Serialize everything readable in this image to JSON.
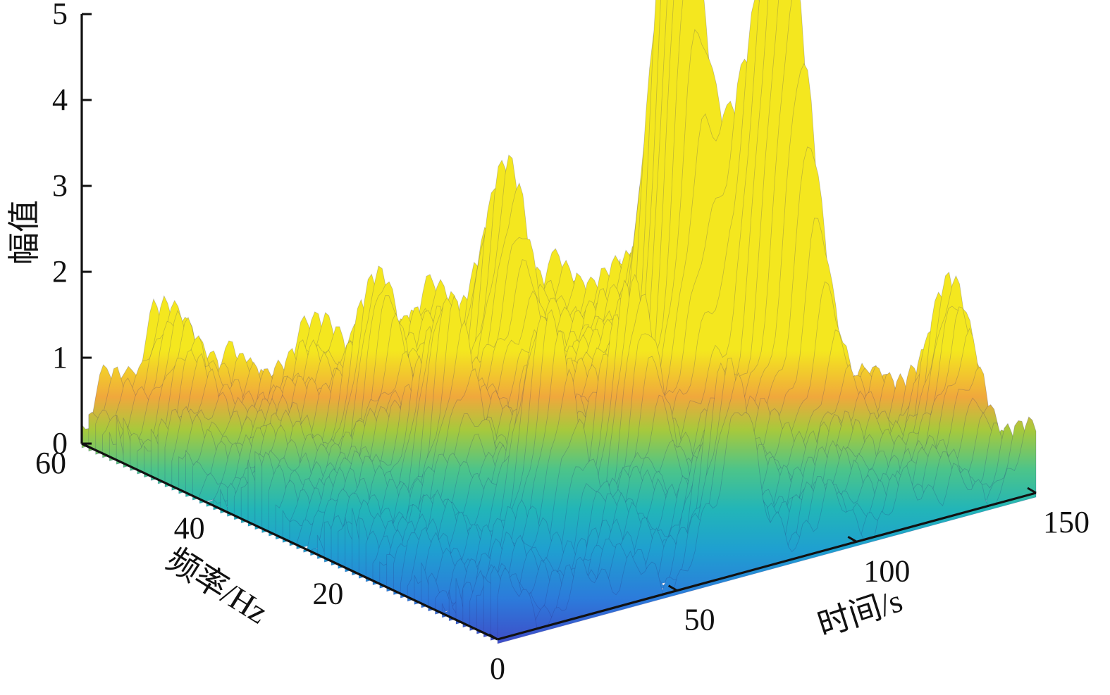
{
  "chart_data": {
    "type": "surface",
    "x_axis": {
      "label": "时间/s",
      "ticks": [
        "0",
        "50",
        "100",
        "150"
      ],
      "range": [
        0,
        150
      ]
    },
    "y_axis": {
      "label": "频率/Hz",
      "ticks": [
        "20",
        "40",
        "60"
      ],
      "range": [
        0,
        60
      ]
    },
    "z_axis": {
      "label": "幅值",
      "ticks": [
        "0",
        "1",
        "2",
        "3",
        "4",
        "5"
      ],
      "range": [
        0,
        5
      ]
    },
    "colormap": "parula",
    "grid": false,
    "baseline_level": 0.6,
    "peaks": [
      {
        "time_s": 20,
        "freq_hz": 58,
        "amplitude": 1.4
      },
      {
        "time_s": 45,
        "freq_hz": 40,
        "amplitude": 1.6
      },
      {
        "time_s": 90,
        "freq_hz": 45,
        "amplitude": 2.4
      },
      {
        "time_s": 40,
        "freq_hz": 28,
        "amplitude": 2.0
      },
      {
        "time_s": 45,
        "freq_hz": 16,
        "amplitude": 2.3
      },
      {
        "time_s": 72,
        "freq_hz": 18,
        "amplitude": 2.0
      },
      {
        "time_s": 68,
        "freq_hz": 1,
        "amplitude": 2.0
      },
      {
        "time_s": 108,
        "freq_hz": 30,
        "amplitude": 3.5
      },
      {
        "time_s": 112,
        "freq_hz": 32,
        "amplitude": 3.7
      },
      {
        "time_s": 118,
        "freq_hz": 25,
        "amplitude": 2.8
      },
      {
        "time_s": 124,
        "freq_hz": 22,
        "amplitude": 4.6
      },
      {
        "time_s": 146,
        "freq_hz": 10,
        "amplitude": 1.8
      }
    ],
    "colors": {
      "low": "#3e26a8",
      "mid_low": "#2c7bdb",
      "mid": "#21b3c8",
      "mid_high": "#6cc74e",
      "high": "#f5a63a",
      "top": "#e8e32a"
    }
  }
}
